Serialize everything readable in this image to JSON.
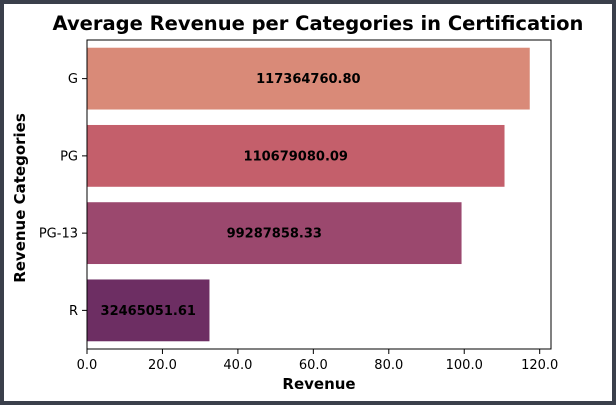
{
  "chart_data": {
    "type": "bar",
    "orientation": "horizontal",
    "title": "Average Revenue per Categories in Certification",
    "xlabel": "Revenue",
    "ylabel": "Revenue Categories",
    "categories": [
      "G",
      "PG",
      "PG-13",
      "R"
    ],
    "values": [
      117364760.8,
      110679080.09,
      99287858.33,
      32465051.61
    ],
    "value_labels": [
      "117364760.80",
      "110679080.09",
      "99287858.33",
      "32465051.61"
    ],
    "colors": [
      "#d98a78",
      "#c45f6b",
      "#9b486e",
      "#6d2e63"
    ],
    "xlim": [
      0,
      123000000
    ],
    "xticks": [
      0,
      20000000,
      40000000,
      60000000,
      80000000,
      100000000,
      120000000
    ],
    "xtick_labels": [
      "0.0",
      "20.0",
      "40.0",
      "60.0",
      "80.0",
      "100.0",
      "120.0"
    ],
    "grid": false,
    "legend": "none"
  }
}
